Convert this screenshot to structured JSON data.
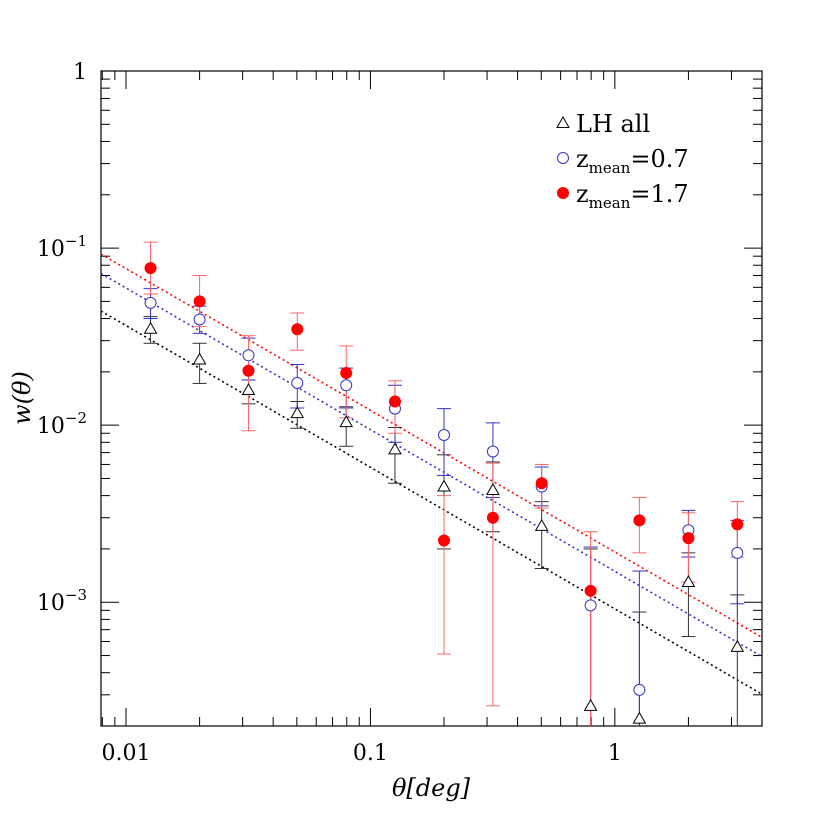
{
  "chart_data": {
    "type": "scatter",
    "title": "",
    "xlabel": "θ[deg]",
    "ylabel": "w(θ)",
    "xscale": "log",
    "yscale": "log",
    "xlim": [
      0.0079,
      4.0
    ],
    "ylim": [
      0.0002,
      1.0
    ],
    "grid": false,
    "legend_position": "top-right",
    "x_tick_labels": [
      {
        "value": 0.01,
        "label": "0.01"
      },
      {
        "value": 0.1,
        "label": "0.1"
      },
      {
        "value": 1,
        "label": "1"
      }
    ],
    "y_tick_labels": [
      {
        "value": 0.001,
        "base": "10",
        "exp": "−3"
      },
      {
        "value": 0.01,
        "base": "10",
        "exp": "−2"
      },
      {
        "value": 0.1,
        "base": "10",
        "exp": "−1"
      },
      {
        "value": 1,
        "base": "1",
        "exp": ""
      }
    ],
    "series": [
      {
        "name": "LH  all",
        "name_base": "LH  all",
        "name_sub": "",
        "name_suffix": "",
        "marker": "triangle-open",
        "color": "#000000",
        "errcolor": "#333333",
        "points": [
          {
            "x": 0.0126,
            "y": 0.035,
            "lo": 0.029,
            "hi": 0.041
          },
          {
            "x": 0.02,
            "y": 0.0235,
            "lo": 0.0172,
            "hi": 0.029
          },
          {
            "x": 0.0317,
            "y": 0.0158,
            "lo": 0.0132,
            "hi": 0.018
          },
          {
            "x": 0.0502,
            "y": 0.0117,
            "lo": 0.0096,
            "hi": 0.0136
          },
          {
            "x": 0.0796,
            "y": 0.0104,
            "lo": 0.0076,
            "hi": 0.0127
          },
          {
            "x": 0.126,
            "y": 0.0073,
            "lo": 0.0047,
            "hi": 0.0097
          },
          {
            "x": 0.2,
            "y": 0.0045,
            "lo": 0.002,
            "hi": 0.0068
          },
          {
            "x": 0.317,
            "y": 0.0043,
            "lo": 0.0025,
            "hi": 0.0062
          },
          {
            "x": 0.502,
            "y": 0.0027,
            "lo": 0.00155,
            "hi": 0.0037
          },
          {
            "x": 0.796,
            "y": 0.00026,
            "lo": 0.0002,
            "hi": 0.002
          },
          {
            "x": 1.26,
            "y": 0.00022,
            "lo": 0.0002,
            "hi": 0.00088
          },
          {
            "x": 2.0,
            "y": 0.0013,
            "lo": 0.00064,
            "hi": 0.0019
          },
          {
            "x": 3.17,
            "y": 0.00056,
            "lo": 0.0002,
            "hi": 0.0011
          }
        ],
        "fit": {
          "slope": -0.8,
          "y_at_0_01": 0.0365
        }
      },
      {
        "name": "zmean=0.7",
        "name_base": "z",
        "name_sub": "mean",
        "name_suffix": "=0.7",
        "marker": "circle-open",
        "color": "#3333cc",
        "errcolor": "#3333cc",
        "points": [
          {
            "x": 0.0126,
            "y": 0.049,
            "lo": 0.04,
            "hi": 0.059
          },
          {
            "x": 0.02,
            "y": 0.0395,
            "lo": 0.033,
            "hi": 0.047
          },
          {
            "x": 0.0317,
            "y": 0.0248,
            "lo": 0.018,
            "hi": 0.031
          },
          {
            "x": 0.0502,
            "y": 0.0173,
            "lo": 0.0125,
            "hi": 0.022
          },
          {
            "x": 0.0796,
            "y": 0.0168,
            "lo": 0.0125,
            "hi": 0.021
          },
          {
            "x": 0.126,
            "y": 0.0124,
            "lo": 0.008,
            "hi": 0.0168
          },
          {
            "x": 0.2,
            "y": 0.0088,
            "lo": 0.0052,
            "hi": 0.0124
          },
          {
            "x": 0.317,
            "y": 0.0071,
            "lo": 0.0039,
            "hi": 0.0103
          },
          {
            "x": 0.502,
            "y": 0.0045,
            "lo": 0.0035,
            "hi": 0.0058
          },
          {
            "x": 0.796,
            "y": 0.00096,
            "lo": 0.0002,
            "hi": 0.00205
          },
          {
            "x": 1.26,
            "y": 0.00032,
            "lo": 0.0002,
            "hi": 0.0015
          },
          {
            "x": 2.0,
            "y": 0.00255,
            "lo": 0.0018,
            "hi": 0.0033
          },
          {
            "x": 3.17,
            "y": 0.0019,
            "lo": 0.00098,
            "hi": 0.0029
          }
        ],
        "fit": {
          "slope": -0.8,
          "y_at_0_01": 0.0595
        }
      },
      {
        "name": "zmean=1.7",
        "name_base": "z",
        "name_sub": "mean",
        "name_suffix": "=1.7",
        "marker": "circle-filled",
        "color": "#ff0000",
        "errcolor": "#ff6666",
        "points": [
          {
            "x": 0.0126,
            "y": 0.077,
            "lo": 0.055,
            "hi": 0.108
          },
          {
            "x": 0.02,
            "y": 0.05,
            "lo": 0.036,
            "hi": 0.07
          },
          {
            "x": 0.0317,
            "y": 0.0203,
            "lo": 0.0093,
            "hi": 0.032
          },
          {
            "x": 0.0502,
            "y": 0.0348,
            "lo": 0.0265,
            "hi": 0.043
          },
          {
            "x": 0.0796,
            "y": 0.0197,
            "lo": 0.011,
            "hi": 0.028
          },
          {
            "x": 0.126,
            "y": 0.0136,
            "lo": 0.009,
            "hi": 0.0178
          },
          {
            "x": 0.2,
            "y": 0.00223,
            "lo": 0.00051,
            "hi": 0.004
          },
          {
            "x": 0.317,
            "y": 0.003,
            "lo": 0.00026,
            "hi": 0.0061
          },
          {
            "x": 0.502,
            "y": 0.0047,
            "lo": 0.0034,
            "hi": 0.006
          },
          {
            "x": 0.796,
            "y": 0.00116,
            "lo": 0.0002,
            "hi": 0.0025
          },
          {
            "x": 1.26,
            "y": 0.0029,
            "lo": 0.0019,
            "hi": 0.0039
          },
          {
            "x": 2.0,
            "y": 0.0023,
            "lo": 0.0013,
            "hi": 0.0032
          },
          {
            "x": 3.17,
            "y": 0.00275,
            "lo": 0.0018,
            "hi": 0.0037
          }
        ],
        "fit": {
          "slope": -0.8,
          "y_at_0_01": 0.0765
        }
      }
    ]
  }
}
